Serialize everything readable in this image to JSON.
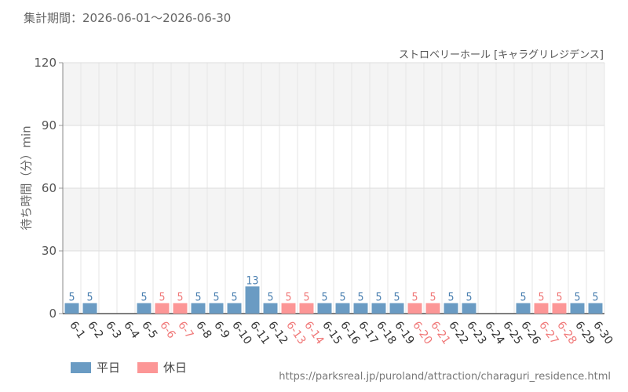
{
  "header": {
    "period": "集計期間：2026-06-01～2026-06-30",
    "attraction": "ストロベリーホール [キャラグリレジデンス]"
  },
  "chart_data": {
    "type": "bar",
    "ylabel": "待ち時間（分）min",
    "ylim": [
      0,
      120
    ],
    "yticks": [
      0,
      30,
      60,
      90,
      120
    ],
    "grid": true,
    "legend_position": "bottom-left",
    "categories": [
      "6-1",
      "6-2",
      "6-3",
      "6-4",
      "6-5",
      "6-6",
      "6-7",
      "6-8",
      "6-9",
      "6-10",
      "6-11",
      "6-12",
      "6-13",
      "6-14",
      "6-15",
      "6-16",
      "6-17",
      "6-18",
      "6-19",
      "6-20",
      "6-21",
      "6-22",
      "6-23",
      "6-24",
      "6-25",
      "6-26",
      "6-27",
      "6-28",
      "6-29",
      "6-30"
    ],
    "values": [
      5,
      5,
      null,
      null,
      5,
      5,
      5,
      5,
      5,
      5,
      13,
      5,
      5,
      5,
      5,
      5,
      5,
      5,
      5,
      5,
      5,
      5,
      5,
      null,
      null,
      5,
      5,
      5,
      5,
      5
    ],
    "day_types": [
      "weekday",
      "weekday",
      "weekday",
      "weekday",
      "weekday",
      "holiday",
      "holiday",
      "weekday",
      "weekday",
      "weekday",
      "weekday",
      "weekday",
      "holiday",
      "holiday",
      "weekday",
      "weekday",
      "weekday",
      "weekday",
      "weekday",
      "holiday",
      "holiday",
      "weekday",
      "weekday",
      "weekday",
      "weekday",
      "weekday",
      "holiday",
      "holiday",
      "weekday",
      "weekday"
    ],
    "series": [
      {
        "name": "平日",
        "key": "weekday",
        "color": "#6a9bc3",
        "label_color": "#4a7fb0"
      },
      {
        "name": "休日",
        "key": "holiday",
        "color": "#fc9696",
        "label_color": "#f07878"
      }
    ]
  },
  "legend": {
    "weekday_label": "平日",
    "holiday_label": "休日",
    "weekday_color": "#6a9bc3",
    "holiday_color": "#fc9696"
  },
  "footer": {
    "source": "https://parksreal.jp/puroland/attraction/charaguri_residence.html"
  }
}
